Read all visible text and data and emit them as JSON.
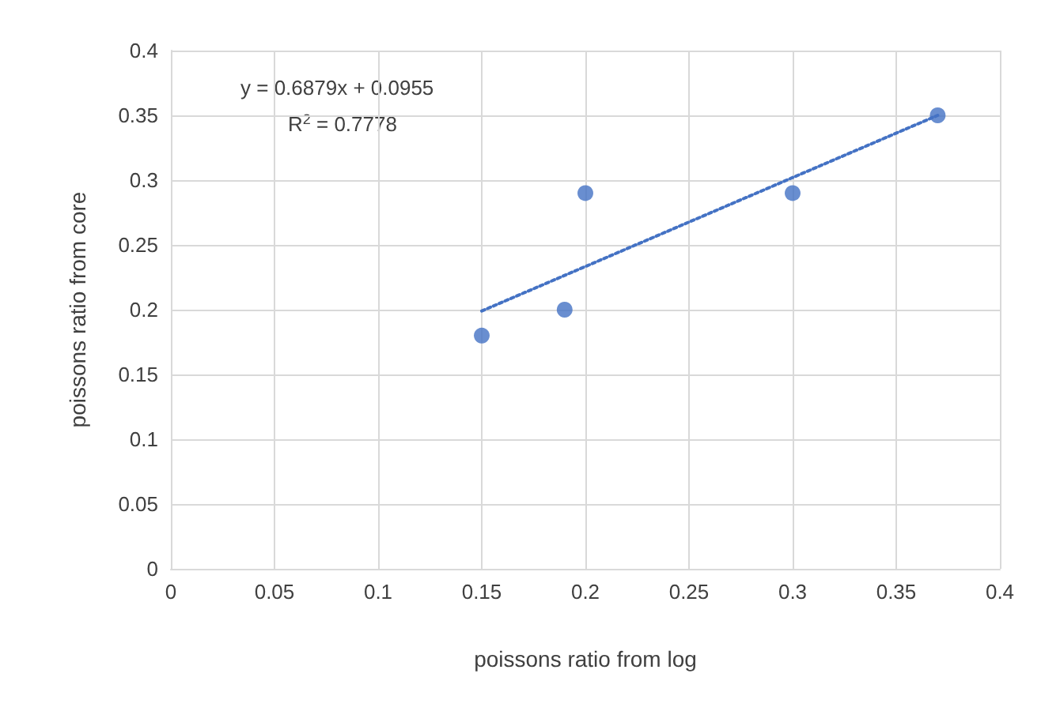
{
  "chart_data": {
    "type": "scatter",
    "xlabel": "poissons ratio from log",
    "ylabel": "poissons ratio from core",
    "x": [
      0.15,
      0.19,
      0.2,
      0.3,
      0.37
    ],
    "series": [
      {
        "color": "#4472c4",
        "values": [
          0.18,
          0.2,
          0.29,
          0.29,
          0.35
        ],
        "marker": "circle"
      },
      {
        "type": "line",
        "color": "#4472c4",
        "x": [
          0.15,
          0.37
        ],
        "values": [
          0.199,
          0.35
        ],
        "line_style": "dotted",
        "marker": "none"
      }
    ],
    "xlim": [
      0,
      0.4
    ],
    "xticks": [
      0,
      0.05,
      0.1,
      0.15,
      0.2,
      0.25,
      0.3,
      0.35,
      0.4
    ],
    "ylim": [
      0,
      0.4
    ],
    "yticks": [
      0,
      0.05,
      0.1,
      0.15,
      0.2,
      0.25,
      0.3,
      0.35,
      0.4
    ],
    "grid": true,
    "annotations": [
      "y = 0.6879x + 0.0955",
      "R$^{2}$ = 0.7778"
    ]
  }
}
